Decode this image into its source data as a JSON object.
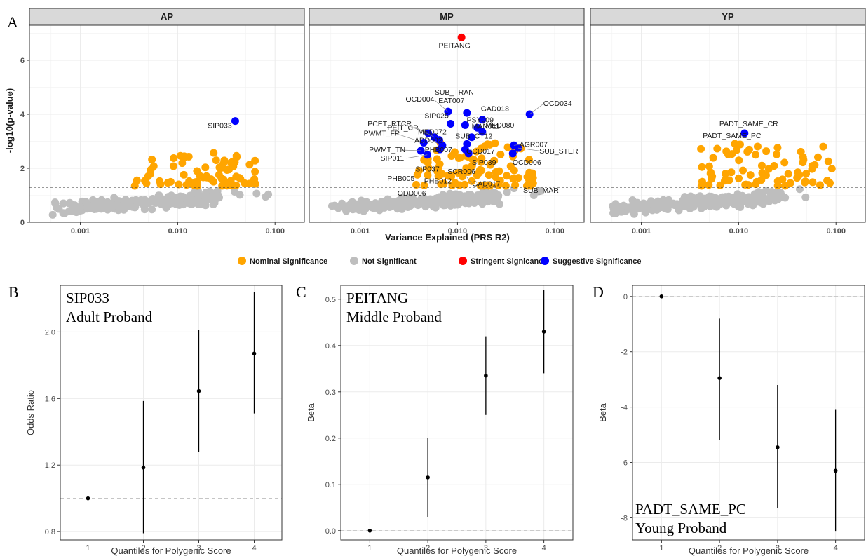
{
  "colors": {
    "nominal": "#FFA500",
    "not_significant": "#BEBEBE",
    "stringent": "#FF0000",
    "suggestive": "#0000FF",
    "grid": "#EBEBEB",
    "strip_bg": "#D9D9D9"
  },
  "panel_letters": [
    "A",
    "B",
    "C",
    "D"
  ],
  "top": {
    "ylabel": "-log10(p-value)",
    "xlabel": "Variance Explained (PRS R2)",
    "x_ticks": [
      "0.001",
      "0.010",
      "0.100"
    ],
    "y_ticks": [
      "0",
      "2",
      "4",
      "6"
    ],
    "threshold_y": 1.3,
    "legend": [
      {
        "key": "nominal",
        "label": "Nominal Significance"
      },
      {
        "key": "not_significant",
        "label": "Not Significant"
      },
      {
        "key": "stringent",
        "label": "Stringent Signicance"
      },
      {
        "key": "suggestive",
        "label": "Suggestive Significance"
      }
    ],
    "panels": [
      {
        "title": "AP",
        "highlight": [
          {
            "x": 0.039,
            "y": 3.75,
            "cls": "suggestive"
          }
        ],
        "labels": [
          {
            "text": "SIP033",
            "x": 0.039,
            "y": 3.75
          }
        ]
      },
      {
        "title": "MP",
        "highlight": [
          {
            "x": 0.011,
            "y": 6.85,
            "cls": "stringent"
          },
          {
            "x": 0.0125,
            "y": 4.05,
            "cls": "suggestive"
          },
          {
            "x": 0.008,
            "y": 4.1,
            "cls": "suggestive"
          },
          {
            "x": 0.055,
            "y": 4.0,
            "cls": "suggestive"
          },
          {
            "x": 0.018,
            "y": 3.8,
            "cls": "suggestive"
          },
          {
            "x": 0.0085,
            "y": 3.65,
            "cls": "suggestive"
          },
          {
            "x": 0.012,
            "y": 3.6,
            "cls": "suggestive"
          },
          {
            "x": 0.016,
            "y": 3.5,
            "cls": "suggestive"
          },
          {
            "x": 0.018,
            "y": 3.35,
            "cls": "suggestive"
          },
          {
            "x": 0.005,
            "y": 3.3,
            "cls": "suggestive"
          },
          {
            "x": 0.0065,
            "y": 3.05,
            "cls": "suggestive"
          },
          {
            "x": 0.0058,
            "y": 3.15,
            "cls": "suggestive"
          },
          {
            "x": 0.014,
            "y": 3.15,
            "cls": "suggestive"
          },
          {
            "x": 0.0045,
            "y": 2.95,
            "cls": "suggestive"
          },
          {
            "x": 0.007,
            "y": 2.85,
            "cls": "suggestive"
          },
          {
            "x": 0.0125,
            "y": 2.9,
            "cls": "suggestive"
          },
          {
            "x": 0.038,
            "y": 2.85,
            "cls": "suggestive"
          },
          {
            "x": 0.042,
            "y": 2.75,
            "cls": "suggestive"
          },
          {
            "x": 0.0042,
            "y": 2.65,
            "cls": "suggestive"
          },
          {
            "x": 0.0066,
            "y": 2.7,
            "cls": "suggestive"
          },
          {
            "x": 0.012,
            "y": 2.7,
            "cls": "suggestive"
          },
          {
            "x": 0.013,
            "y": 2.55,
            "cls": "suggestive"
          },
          {
            "x": 0.037,
            "y": 2.55,
            "cls": "suggestive"
          },
          {
            "x": 0.0049,
            "y": 2.5,
            "cls": "suggestive"
          }
        ],
        "labels": [
          {
            "text": "PEITANG",
            "x": 0.011,
            "y": 6.85
          },
          {
            "text": "SUB_TRAN",
            "x": 0.0125,
            "y": 4.05
          },
          {
            "text": "OCD004",
            "x": 0.008,
            "y": 4.1
          },
          {
            "text": "EAT007",
            "x": 0.0125,
            "y": 4.05
          },
          {
            "text": "GAD018",
            "x": 0.018,
            "y": 3.8
          },
          {
            "text": "OCD034",
            "x": 0.055,
            "y": 4.0
          },
          {
            "text": "PEIT_CR",
            "x": 0.0058,
            "y": 3.15
          },
          {
            "text": "SIP025",
            "x": 0.0085,
            "y": 3.65
          },
          {
            "text": "PSY009",
            "x": 0.016,
            "y": 3.5
          },
          {
            "text": "MED080",
            "x": 0.018,
            "y": 3.35
          },
          {
            "text": "PCET_RTCR",
            "x": 0.005,
            "y": 3.3
          },
          {
            "text": "MED072",
            "x": 0.0065,
            "y": 3.05
          },
          {
            "text": "MAN011",
            "x": 0.014,
            "y": 3.15
          },
          {
            "text": "PWMT_FP",
            "x": 0.0045,
            "y": 2.95
          },
          {
            "text": "ADD002",
            "x": 0.007,
            "y": 2.85
          },
          {
            "text": "SUB_CT12",
            "x": 0.0125,
            "y": 2.9
          },
          {
            "text": "AGR007",
            "x": 0.038,
            "y": 2.85
          },
          {
            "text": "PWMT_TN",
            "x": 0.0042,
            "y": 2.65
          },
          {
            "text": "PHB007",
            "x": 0.0066,
            "y": 2.7
          },
          {
            "text": "SUB_STER",
            "x": 0.042,
            "y": 2.75
          },
          {
            "text": "SIP011",
            "x": 0.0049,
            "y": 2.5
          },
          {
            "text": "OCD017",
            "x": 0.012,
            "y": 2.7
          },
          {
            "text": "OCD006",
            "x": 0.037,
            "y": 2.55
          },
          {
            "text": "SIP037",
            "x": 0.006,
            "y": 2.2
          },
          {
            "text": "SCR006",
            "x": 0.009,
            "y": 2.1
          },
          {
            "text": "SIP039",
            "x": 0.013,
            "y": 2.55
          },
          {
            "text": "SUB_MAR",
            "x": 0.05,
            "y": 1.45
          },
          {
            "text": "PHB005",
            "x": 0.003,
            "y": 1.85
          },
          {
            "text": "PHB012",
            "x": 0.0055,
            "y": 1.8
          },
          {
            "text": "GAD017",
            "x": 0.012,
            "y": 1.75
          },
          {
            "text": "ODD006",
            "x": 0.004,
            "y": 1.4
          }
        ]
      },
      {
        "title": "YP",
        "highlight": [
          {
            "x": 0.0115,
            "y": 3.3,
            "cls": "suggestive"
          }
        ],
        "labels": [
          {
            "text": "PADT_SAME_CR",
            "x": 0.0115,
            "y": 3.3
          },
          {
            "text": "PADT_SAME_PC",
            "x": 0.0115,
            "y": 3.3
          }
        ]
      }
    ]
  },
  "bottom": [
    {
      "letter": "B",
      "inset_lines": [
        "SIP033",
        "Adult Proband"
      ],
      "ylabel": "Odds Ratio",
      "xlabel": "Quantiles for Polygenic Score",
      "x": [
        1,
        2,
        3,
        4
      ],
      "y": [
        1.0,
        1.185,
        1.645,
        1.87
      ],
      "lower": [
        1.0,
        0.79,
        1.28,
        1.51
      ],
      "upper": [
        1.0,
        1.585,
        2.01,
        2.24
      ],
      "ref": 1.0,
      "ylim": [
        0.75,
        2.28
      ],
      "y_ticks": [
        "0.8",
        "1.2",
        "1.6",
        "2.0"
      ],
      "x_ticks": [
        "1",
        "2",
        "3",
        "4"
      ]
    },
    {
      "letter": "C",
      "inset_lines": [
        "PEITANG",
        "Middle Proband"
      ],
      "ylabel": "Beta",
      "xlabel": "Quantiles for Polygenic Score",
      "x": [
        1,
        2,
        3,
        4
      ],
      "y": [
        0.0,
        0.115,
        0.335,
        0.43
      ],
      "lower": [
        0.0,
        0.03,
        0.25,
        0.34
      ],
      "upper": [
        0.0,
        0.2,
        0.42,
        0.52
      ],
      "ref": 0.0,
      "ylim": [
        -0.02,
        0.53
      ],
      "y_ticks": [
        "0.0",
        "0.1",
        "0.2",
        "0.3",
        "0.4",
        "0.5"
      ],
      "x_ticks": [
        "1",
        "2",
        "3",
        "4"
      ]
    },
    {
      "letter": "D",
      "inset_lines": [
        "PADT_SAME_PC",
        "Young Proband"
      ],
      "ylabel": "Beta",
      "xlabel": "Quantiles for Polygenic Score",
      "x": [
        1,
        2,
        3,
        4
      ],
      "y": [
        0.0,
        -2.95,
        -5.45,
        -6.3
      ],
      "lower": [
        0.0,
        -5.2,
        -7.65,
        -8.5
      ],
      "upper": [
        0.0,
        -0.8,
        -3.2,
        -4.1
      ],
      "ref": 0.0,
      "ylim": [
        -8.8,
        0.4
      ],
      "y_ticks": [
        "0",
        "-2",
        "-4",
        "-6",
        "-8"
      ],
      "x_ticks": [
        "1",
        "2",
        "3",
        "4"
      ]
    }
  ],
  "chart_data": [
    {
      "type": "scatter",
      "facet": "AP",
      "xlabel": "Variance Explained (PRS R2)",
      "ylabel": "-log10(p-value)",
      "x_scale": "log10",
      "xlim": [
        0.0003,
        0.2
      ],
      "ylim": [
        0,
        7.3
      ],
      "threshold": 1.3,
      "series": [
        {
          "name": "Suggestive Significance",
          "points": [
            {
              "label": "SIP033",
              "x": 0.039,
              "y": 3.75
            }
          ]
        }
      ]
    },
    {
      "type": "scatter",
      "facet": "MP",
      "xlabel": "Variance Explained (PRS R2)",
      "ylabel": "-log10(p-value)",
      "x_scale": "log10",
      "xlim": [
        0.0003,
        0.2
      ],
      "ylim": [
        0,
        7.3
      ],
      "threshold": 1.3,
      "series": [
        {
          "name": "Stringent Signicance",
          "points": [
            {
              "label": "PEITANG",
              "x": 0.011,
              "y": 6.85
            }
          ]
        },
        {
          "name": "Suggestive Significance",
          "points": [
            {
              "label": "SUB_TRAN",
              "x": 0.0125,
              "y": 4.05
            },
            {
              "label": "OCD004",
              "x": 0.008,
              "y": 4.1
            },
            {
              "label": "OCD034",
              "x": 0.055,
              "y": 4.0
            },
            {
              "label": "GAD018",
              "x": 0.018,
              "y": 3.8
            },
            {
              "label": "SIP025",
              "x": 0.0085,
              "y": 3.65
            },
            {
              "label": "PSY009",
              "x": 0.016,
              "y": 3.5
            },
            {
              "label": "MED080",
              "x": 0.018,
              "y": 3.35
            },
            {
              "label": "PCET_RTCR",
              "x": 0.005,
              "y": 3.3
            },
            {
              "label": "AGR007",
              "x": 0.038,
              "y": 2.85
            },
            {
              "label": "SUB_STER",
              "x": 0.042,
              "y": 2.75
            }
          ]
        }
      ]
    },
    {
      "type": "scatter",
      "facet": "YP",
      "xlabel": "Variance Explained (PRS R2)",
      "ylabel": "-log10(p-value)",
      "x_scale": "log10",
      "xlim": [
        0.0003,
        0.2
      ],
      "ylim": [
        0,
        7.3
      ],
      "threshold": 1.3,
      "series": [
        {
          "name": "Suggestive Significance",
          "points": [
            {
              "label": "PADT_SAME_CR",
              "x": 0.0115,
              "y": 3.3
            }
          ]
        }
      ]
    },
    {
      "type": "scatter",
      "title": "SIP033 Adult Proband",
      "xlabel": "Quantiles for Polygenic Score",
      "ylabel": "Odds Ratio",
      "x": [
        1,
        2,
        3,
        4
      ],
      "y": [
        1.0,
        1.185,
        1.645,
        1.87
      ],
      "error_low": [
        1.0,
        0.79,
        1.28,
        1.51
      ],
      "error_high": [
        1.0,
        1.585,
        2.01,
        2.24
      ]
    },
    {
      "type": "scatter",
      "title": "PEITANG Middle Proband",
      "xlabel": "Quantiles for Polygenic Score",
      "ylabel": "Beta",
      "x": [
        1,
        2,
        3,
        4
      ],
      "y": [
        0.0,
        0.115,
        0.335,
        0.43
      ],
      "error_low": [
        0.0,
        0.03,
        0.25,
        0.34
      ],
      "error_high": [
        0.0,
        0.2,
        0.42,
        0.52
      ]
    },
    {
      "type": "scatter",
      "title": "PADT_SAME_PC Young Proband",
      "xlabel": "Quantiles for Polygenic Score",
      "ylabel": "Beta",
      "x": [
        1,
        2,
        3,
        4
      ],
      "y": [
        0.0,
        -2.95,
        -5.45,
        -6.3
      ],
      "error_low": [
        0.0,
        -5.2,
        -7.65,
        -8.5
      ],
      "error_high": [
        0.0,
        -0.8,
        -3.2,
        -4.1
      ]
    }
  ]
}
